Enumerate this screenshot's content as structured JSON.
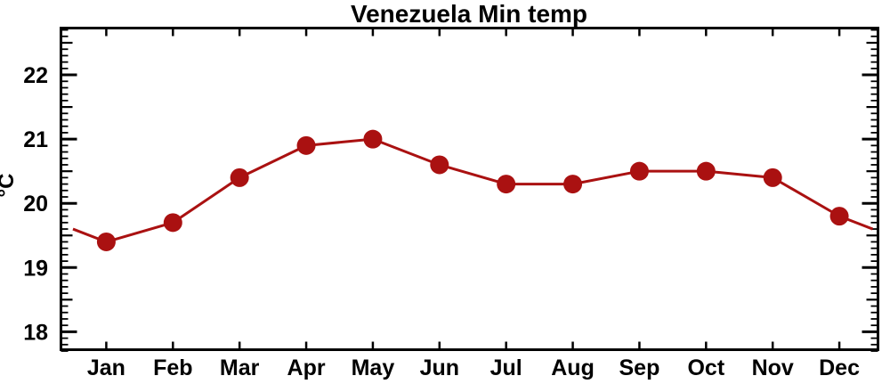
{
  "chart_data": {
    "type": "line",
    "title": "Venezuela Min temp",
    "ylabel": "°C",
    "categories": [
      "Jan",
      "Feb",
      "Mar",
      "Apr",
      "May",
      "Jun",
      "Jul",
      "Aug",
      "Sep",
      "Oct",
      "Nov",
      "Dec"
    ],
    "x": [
      1,
      2,
      3,
      4,
      5,
      6,
      7,
      8,
      9,
      10,
      11,
      12
    ],
    "values": [
      19.4,
      19.7,
      20.4,
      20.9,
      21.0,
      20.6,
      20.3,
      20.3,
      20.5,
      20.5,
      20.4,
      19.8
    ],
    "edge_line": {
      "left_x": 0.5,
      "left_value": 19.6,
      "right_x": 12.5,
      "right_value": 19.6
    },
    "xlim": [
      0.3,
      12.6
    ],
    "ylim": [
      17.7,
      22.75
    ],
    "y_major_ticks": [
      18,
      19,
      20,
      21,
      22
    ],
    "y_tick_labels": [
      "18",
      "19",
      "20",
      "21",
      "22"
    ],
    "y_minor_step": 0.1,
    "line_color": "#AA1111",
    "marker": "circle",
    "marker_radius": 10.5,
    "axis_color": "#000000",
    "background": "#FFFFFF",
    "grid": false,
    "legend": false,
    "tick_style": "inward-both-sides"
  }
}
